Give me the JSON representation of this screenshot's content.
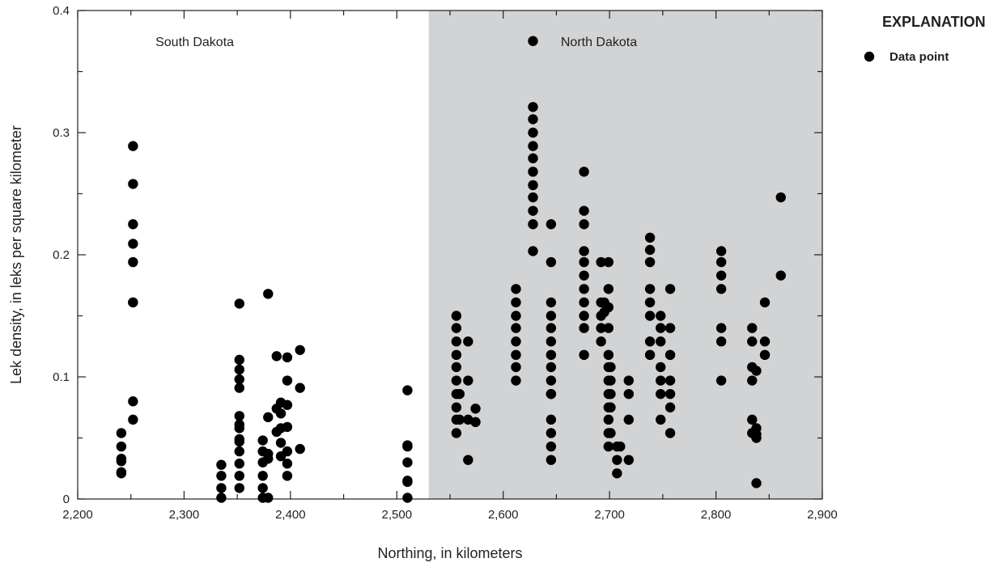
{
  "chart_data": {
    "type": "scatter",
    "xlabel": "Northing, in kilometers",
    "ylabel": "Lek density, in leks per square kilometer",
    "xlim": [
      2200,
      2900
    ],
    "ylim": [
      0,
      0.4
    ],
    "x_ticks": [
      2200,
      2300,
      2400,
      2500,
      2600,
      2700,
      2800,
      2900
    ],
    "x_tick_labels": [
      "2,200",
      "2,300",
      "2,400",
      "2,500",
      "2,600",
      "2,700",
      "2,800",
      "2,900"
    ],
    "y_ticks": [
      0,
      0.1,
      0.2,
      0.3,
      0.4
    ],
    "y_tick_labels": [
      "0",
      "0.1",
      "0.2",
      "0.3",
      "0.4"
    ],
    "grid": false,
    "legend_position": "right",
    "shaded_region": {
      "x_start": 2530,
      "x_end": 2900,
      "color": "#d1d3d4"
    },
    "region_labels": [
      {
        "text": "South Dakota",
        "x": 2310,
        "y": 0.375
      },
      {
        "text": "North Dakota",
        "x": 2690,
        "y": 0.375
      }
    ],
    "legend": {
      "title": "EXPLANATION",
      "entries": [
        "Data point"
      ]
    },
    "marker_color": "#000000",
    "series": [
      {
        "name": "Data point",
        "points": [
          [
            2241,
            0.054
          ],
          [
            2241,
            0.043
          ],
          [
            2241,
            0.033
          ],
          [
            2241,
            0.031
          ],
          [
            2241,
            0.022
          ],
          [
            2241,
            0.021
          ],
          [
            2252,
            0.289
          ],
          [
            2252,
            0.258
          ],
          [
            2252,
            0.225
          ],
          [
            2252,
            0.209
          ],
          [
            2252,
            0.194
          ],
          [
            2252,
            0.161
          ],
          [
            2252,
            0.161
          ],
          [
            2252,
            0.08
          ],
          [
            2252,
            0.065
          ],
          [
            2335,
            0.028
          ],
          [
            2335,
            0.019
          ],
          [
            2335,
            0.009
          ],
          [
            2335,
            0.001
          ],
          [
            2352,
            0.16
          ],
          [
            2352,
            0.114
          ],
          [
            2352,
            0.106
          ],
          [
            2352,
            0.098
          ],
          [
            2352,
            0.091
          ],
          [
            2352,
            0.068
          ],
          [
            2352,
            0.061
          ],
          [
            2352,
            0.058
          ],
          [
            2352,
            0.049
          ],
          [
            2352,
            0.047
          ],
          [
            2352,
            0.039
          ],
          [
            2352,
            0.029
          ],
          [
            2352,
            0.019
          ],
          [
            2352,
            0.009
          ],
          [
            2374,
            0.048
          ],
          [
            2374,
            0.039
          ],
          [
            2374,
            0.03
          ],
          [
            2374,
            0.019
          ],
          [
            2374,
            0.009
          ],
          [
            2374,
            0.001
          ],
          [
            2379,
            0.168
          ],
          [
            2379,
            0.067
          ],
          [
            2379,
            0.037
          ],
          [
            2379,
            0.033
          ],
          [
            2379,
            0.001
          ],
          [
            2387,
            0.117
          ],
          [
            2387,
            0.074
          ],
          [
            2387,
            0.055
          ],
          [
            2391,
            0.079
          ],
          [
            2391,
            0.07
          ],
          [
            2391,
            0.058
          ],
          [
            2391,
            0.046
          ],
          [
            2391,
            0.035
          ],
          [
            2397,
            0.116
          ],
          [
            2397,
            0.097
          ],
          [
            2397,
            0.077
          ],
          [
            2397,
            0.059
          ],
          [
            2397,
            0.039
          ],
          [
            2397,
            0.029
          ],
          [
            2397,
            0.019
          ],
          [
            2409,
            0.122
          ],
          [
            2409,
            0.091
          ],
          [
            2409,
            0.041
          ],
          [
            2510,
            0.089
          ],
          [
            2510,
            0.044
          ],
          [
            2510,
            0.043
          ],
          [
            2510,
            0.03
          ],
          [
            2510,
            0.015
          ],
          [
            2510,
            0.014
          ],
          [
            2510,
            0.001
          ],
          [
            2556,
            0.15
          ],
          [
            2556,
            0.14
          ],
          [
            2556,
            0.129
          ],
          [
            2556,
            0.118
          ],
          [
            2556,
            0.108
          ],
          [
            2556,
            0.097
          ],
          [
            2556,
            0.086
          ],
          [
            2556,
            0.075
          ],
          [
            2556,
            0.065
          ],
          [
            2556,
            0.054
          ],
          [
            2559,
            0.086
          ],
          [
            2559,
            0.065
          ],
          [
            2567,
            0.129
          ],
          [
            2567,
            0.097
          ],
          [
            2567,
            0.065
          ],
          [
            2567,
            0.032
          ],
          [
            2574,
            0.074
          ],
          [
            2574,
            0.063
          ],
          [
            2612,
            0.172
          ],
          [
            2612,
            0.161
          ],
          [
            2612,
            0.15
          ],
          [
            2612,
            0.14
          ],
          [
            2612,
            0.129
          ],
          [
            2612,
            0.118
          ],
          [
            2612,
            0.108
          ],
          [
            2612,
            0.097
          ],
          [
            2628,
            0.375
          ],
          [
            2628,
            0.321
          ],
          [
            2628,
            0.311
          ],
          [
            2628,
            0.3
          ],
          [
            2628,
            0.289
          ],
          [
            2628,
            0.279
          ],
          [
            2628,
            0.268
          ],
          [
            2628,
            0.257
          ],
          [
            2628,
            0.247
          ],
          [
            2628,
            0.236
          ],
          [
            2628,
            0.225
          ],
          [
            2628,
            0.203
          ],
          [
            2645,
            0.225
          ],
          [
            2645,
            0.194
          ],
          [
            2645,
            0.161
          ],
          [
            2645,
            0.15
          ],
          [
            2645,
            0.14
          ],
          [
            2645,
            0.129
          ],
          [
            2645,
            0.118
          ],
          [
            2645,
            0.108
          ],
          [
            2645,
            0.097
          ],
          [
            2645,
            0.086
          ],
          [
            2645,
            0.086
          ],
          [
            2645,
            0.065
          ],
          [
            2645,
            0.054
          ],
          [
            2645,
            0.043
          ],
          [
            2645,
            0.032
          ],
          [
            2676,
            0.268
          ],
          [
            2676,
            0.236
          ],
          [
            2676,
            0.225
          ],
          [
            2676,
            0.203
          ],
          [
            2676,
            0.194
          ],
          [
            2676,
            0.183
          ],
          [
            2676,
            0.172
          ],
          [
            2676,
            0.161
          ],
          [
            2676,
            0.15
          ],
          [
            2676,
            0.14
          ],
          [
            2676,
            0.118
          ],
          [
            2692,
            0.194
          ],
          [
            2692,
            0.161
          ],
          [
            2692,
            0.15
          ],
          [
            2692,
            0.14
          ],
          [
            2692,
            0.129
          ],
          [
            2695,
            0.161
          ],
          [
            2695,
            0.153
          ],
          [
            2699,
            0.194
          ],
          [
            2699,
            0.172
          ],
          [
            2699,
            0.157
          ],
          [
            2699,
            0.14
          ],
          [
            2699,
            0.118
          ],
          [
            2699,
            0.108
          ],
          [
            2699,
            0.097
          ],
          [
            2699,
            0.086
          ],
          [
            2699,
            0.075
          ],
          [
            2699,
            0.065
          ],
          [
            2699,
            0.054
          ],
          [
            2699,
            0.043
          ],
          [
            2701,
            0.108
          ],
          [
            2701,
            0.097
          ],
          [
            2701,
            0.086
          ],
          [
            2701,
            0.075
          ],
          [
            2701,
            0.054
          ],
          [
            2707,
            0.043
          ],
          [
            2707,
            0.032
          ],
          [
            2707,
            0.021
          ],
          [
            2710,
            0.043
          ],
          [
            2718,
            0.097
          ],
          [
            2718,
            0.086
          ],
          [
            2718,
            0.065
          ],
          [
            2718,
            0.032
          ],
          [
            2738,
            0.214
          ],
          [
            2738,
            0.204
          ],
          [
            2738,
            0.194
          ],
          [
            2738,
            0.172
          ],
          [
            2738,
            0.161
          ],
          [
            2738,
            0.15
          ],
          [
            2738,
            0.129
          ],
          [
            2738,
            0.118
          ],
          [
            2748,
            0.15
          ],
          [
            2748,
            0.14
          ],
          [
            2748,
            0.129
          ],
          [
            2748,
            0.108
          ],
          [
            2748,
            0.097
          ],
          [
            2748,
            0.086
          ],
          [
            2748,
            0.065
          ],
          [
            2757,
            0.172
          ],
          [
            2757,
            0.14
          ],
          [
            2757,
            0.118
          ],
          [
            2757,
            0.097
          ],
          [
            2757,
            0.086
          ],
          [
            2757,
            0.075
          ],
          [
            2757,
            0.054
          ],
          [
            2805,
            0.203
          ],
          [
            2805,
            0.194
          ],
          [
            2805,
            0.183
          ],
          [
            2805,
            0.172
          ],
          [
            2805,
            0.14
          ],
          [
            2805,
            0.129
          ],
          [
            2805,
            0.097
          ],
          [
            2834,
            0.14
          ],
          [
            2834,
            0.129
          ],
          [
            2834,
            0.108
          ],
          [
            2834,
            0.097
          ],
          [
            2834,
            0.065
          ],
          [
            2834,
            0.054
          ],
          [
            2838,
            0.105
          ],
          [
            2838,
            0.058
          ],
          [
            2838,
            0.053
          ],
          [
            2838,
            0.05
          ],
          [
            2838,
            0.013
          ],
          [
            2846,
            0.161
          ],
          [
            2846,
            0.129
          ],
          [
            2846,
            0.118
          ],
          [
            2861,
            0.247
          ],
          [
            2861,
            0.183
          ]
        ]
      }
    ]
  }
}
